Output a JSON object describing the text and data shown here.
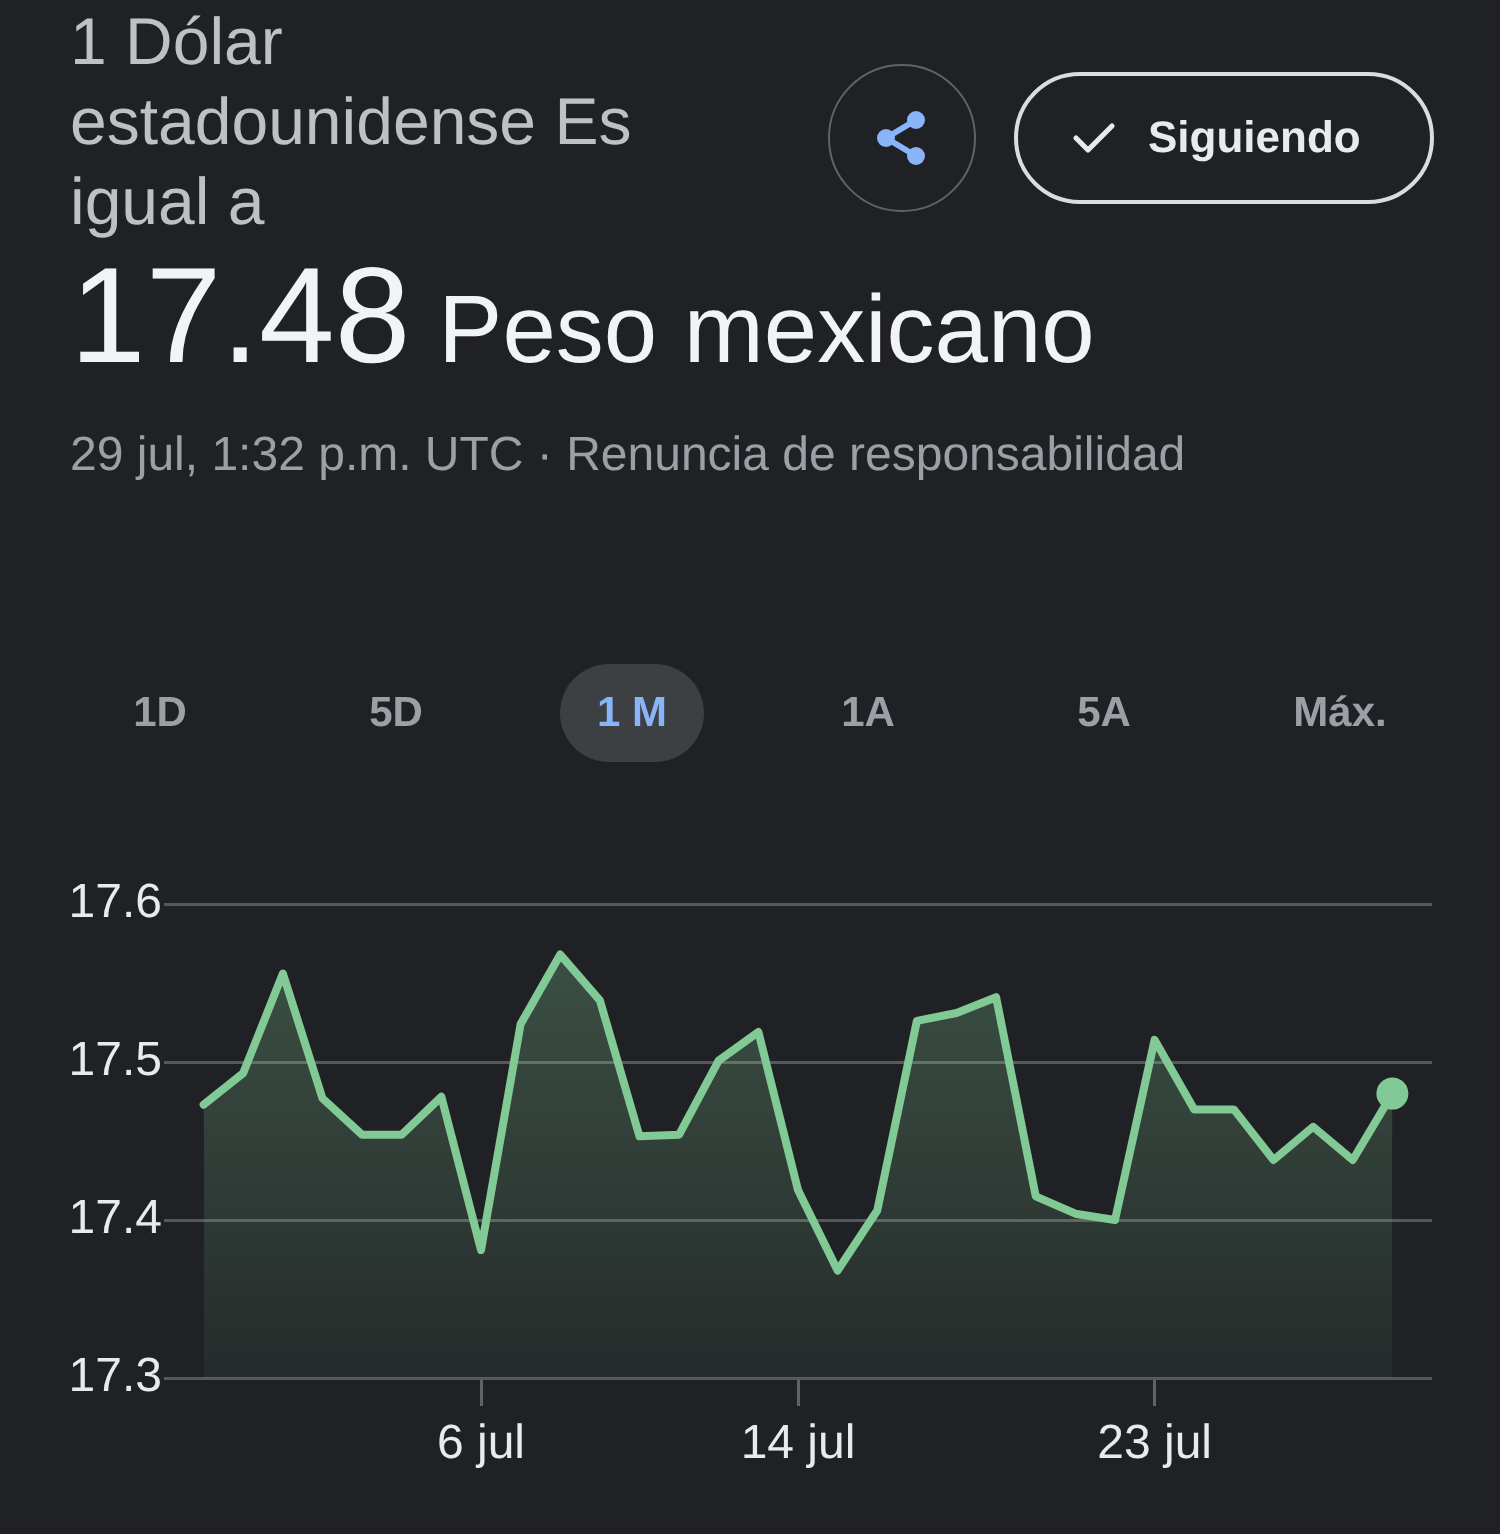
{
  "chart_data": {
    "type": "area",
    "title": "1 Dólar estadounidense Es igual a",
    "subtitle": "17.48 Peso mexicano",
    "annotations": [
      "29 jul, 1:32 p.m. UTC · Renuncia de responsabilidad",
      "Siguiendo",
      "1D",
      "5D",
      "1 M",
      "1A",
      "5A",
      "Máx."
    ],
    "x": [
      "--06-29",
      "--06-30",
      "--07-01",
      "--07-02",
      "--07-03",
      "--07-04",
      "--07-05",
      "--07-06",
      "--07-07",
      "--07-08",
      "--07-09",
      "--07-10",
      "--07-11",
      "--07-12",
      "--07-13",
      "--07-14",
      "--07-15",
      "--07-16",
      "--07-17",
      "--07-18",
      "--07-19",
      "--07-20",
      "--07-21",
      "--07-22",
      "--07-23",
      "--07-24",
      "--07-25",
      "--07-26",
      "--07-27",
      "--07-28",
      "--07-29"
    ],
    "series": [
      {
        "color": "#81c995",
        "values": [
          17.473,
          17.493,
          17.556,
          17.477,
          17.454,
          17.454,
          17.478,
          17.381,
          17.524,
          17.568,
          17.539,
          17.453,
          17.454,
          17.501,
          17.519,
          17.419,
          17.368,
          17.406,
          17.526,
          17.531,
          17.541,
          17.415,
          17.404,
          17.4,
          17.514,
          17.47,
          17.47,
          17.438,
          17.459,
          17.438,
          17.48
        ]
      },
      {
        "type": "scatter",
        "x": [
          "--07-29"
        ],
        "values": [
          17.48
        ],
        "color": "#81c995",
        "marker": "circle"
      }
    ],
    "xlim": [
      "--06-28",
      "--07-30"
    ],
    "xticks": [
      {
        "value": "--07-06",
        "label": "6 jul"
      },
      {
        "value": "--07-14",
        "label": "14 jul"
      },
      {
        "value": "--07-23",
        "label": "23 jul"
      }
    ],
    "ylim": [
      17.3,
      17.6
    ],
    "yticks": [
      17.3,
      17.4,
      17.5,
      17.6
    ],
    "grid": "y"
  }
}
